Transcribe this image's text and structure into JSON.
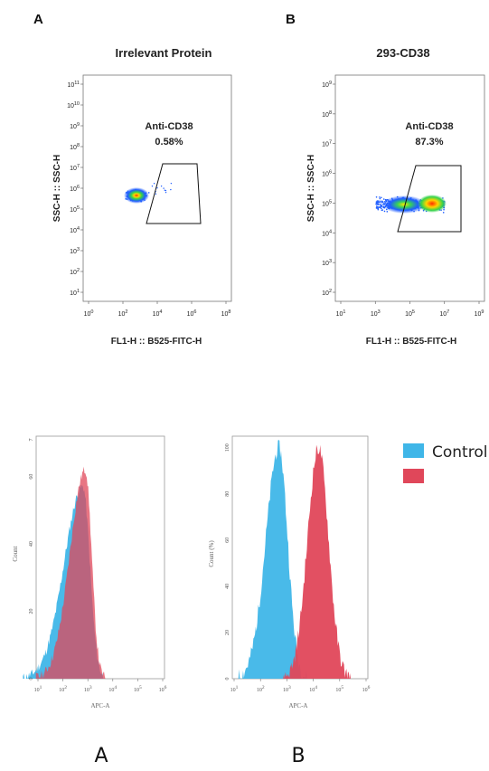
{
  "chart_data": [
    {
      "type": "scatter",
      "panel": "A",
      "title": "Irrelevant Protein",
      "xlabel": "FL1-H :: B525-FITC-H",
      "ylabel": "SSC-H :: SSC-H",
      "x_scale": "log",
      "y_scale": "log",
      "x_ticks": [
        "10^0",
        "10^2",
        "10^4",
        "10^6",
        "10^8"
      ],
      "y_ticks": [
        "10^1",
        "10^2",
        "10^3",
        "10^4",
        "10^5",
        "10^6",
        "10^7",
        "10^8",
        "10^9",
        "10^10",
        "10^11"
      ],
      "gate": {
        "label": "Anti-CD38",
        "percent": "0.58%"
      },
      "population": {
        "x_center_log": 2.8,
        "y_center_log": 5.2
      }
    },
    {
      "type": "scatter",
      "panel": "B",
      "title": "293-CD38",
      "xlabel": "FL1-H :: B525-FITC-H",
      "ylabel": "SSC-H :: SSC-H",
      "x_scale": "log",
      "y_scale": "log",
      "x_ticks": [
        "10^1",
        "10^3",
        "10^5",
        "10^7",
        "10^9"
      ],
      "y_ticks": [
        "10^2",
        "10^3",
        "10^4",
        "10^5",
        "10^6",
        "10^7",
        "10^8",
        "10^9"
      ],
      "gate": {
        "label": "Anti-CD38",
        "percent": "87.3%"
      },
      "population": {
        "x_range_log": [
          2.5,
          6.8
        ],
        "y_center_log": 5.0
      }
    },
    {
      "type": "area",
      "panel": "A",
      "xlabel": "APC-A",
      "ylabel": "Count",
      "x_scale": "log",
      "x_ticks": [
        "10^1",
        "10^2",
        "10^3",
        "10^4",
        "10^5",
        "10^6"
      ],
      "y_ticks": [
        "0",
        "20",
        "40",
        "60"
      ],
      "y_extra_tick": "7",
      "series": [
        {
          "name": "Control",
          "color": "#3fb6e8",
          "peak_log": 2.8,
          "peak_count": 57
        },
        {
          "color": "#e0475a",
          "peak_log": 2.9,
          "peak_count": 62
        }
      ]
    },
    {
      "type": "area",
      "panel": "B",
      "xlabel": "APC-A",
      "ylabel": "Count (%)",
      "x_scale": "log",
      "x_ticks": [
        "10^1",
        "10^2",
        "10^3",
        "10^4",
        "10^5",
        "10^6"
      ],
      "y_ticks": [
        "0",
        "20",
        "40",
        "60",
        "80",
        "100"
      ],
      "series": [
        {
          "name": "Control",
          "color": "#3fb6e8",
          "peak_log": 2.7,
          "peak_count": 100
        },
        {
          "color": "#e0475a",
          "peak_log": 4.2,
          "peak_count": 100
        }
      ]
    }
  ],
  "labels": {
    "top_a": "A",
    "top_b": "B",
    "bottom_a": "A",
    "bottom_b": "B",
    "legend_control": "Control"
  },
  "colors": {
    "control": "#3fb6e8",
    "sample": "#e0475a"
  }
}
